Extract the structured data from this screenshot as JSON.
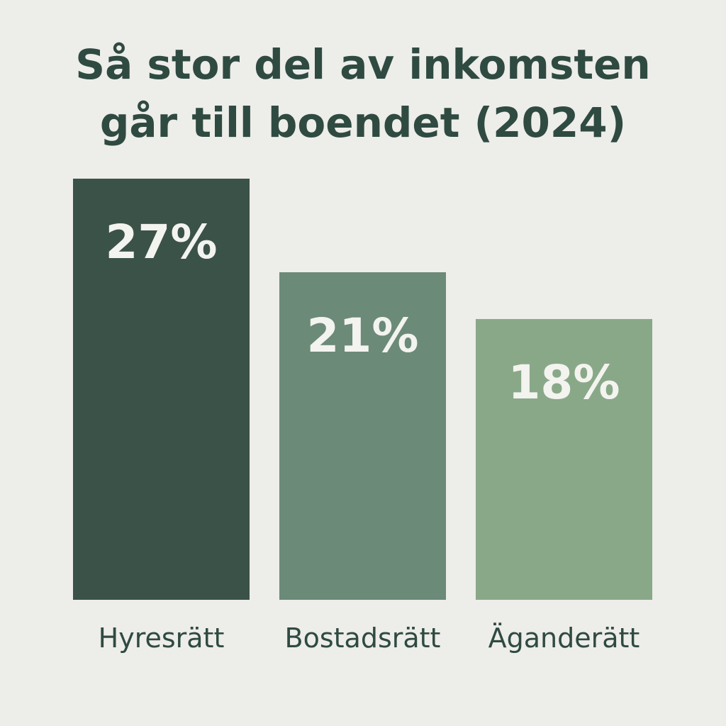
{
  "chart_data": {
    "type": "bar",
    "title_lines": [
      "Så stor del av inkomsten",
      "går till boendet (2024)"
    ],
    "categories": [
      "Hyresrätt",
      "Bostadsrätt",
      "Äganderätt"
    ],
    "values": [
      27,
      21,
      18
    ],
    "value_labels": [
      "27%",
      "21%",
      "18%"
    ],
    "colors": [
      "#3b5248",
      "#6b8a78",
      "#89a888"
    ],
    "ylim": [
      0,
      27
    ],
    "grid": false,
    "legend": "none",
    "background": "#ededea"
  }
}
